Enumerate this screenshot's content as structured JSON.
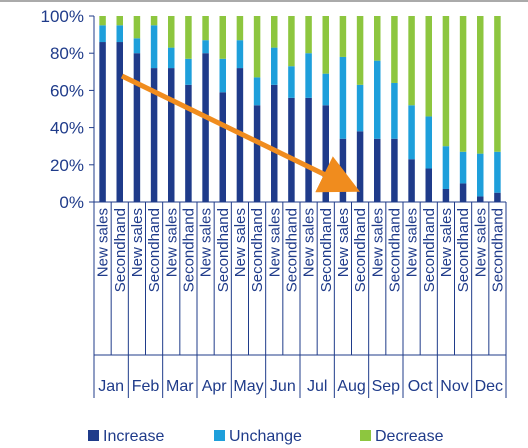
{
  "chart_data": {
    "type": "bar",
    "stacked": true,
    "normalized": true,
    "months": [
      "Jan",
      "Feb",
      "Mar",
      "Apr",
      "May",
      "Jun",
      "Jul",
      "Aug",
      "Sep",
      "Oct",
      "Nov",
      "Dec"
    ],
    "sub_categories": [
      "New sales",
      "Secondhand"
    ],
    "categories": [
      "Jan New sales",
      "Jan Secondhand",
      "Feb New sales",
      "Feb Secondhand",
      "Mar New sales",
      "Mar Secondhand",
      "Apr New sales",
      "Apr Secondhand",
      "May New sales",
      "May Secondhand",
      "Jun New sales",
      "Jun Secondhand",
      "Jul New sales",
      "Jul Secondhand",
      "Aug New sales",
      "Aug Secondhand",
      "Sep New sales",
      "Sep Secondhand",
      "Oct New sales",
      "Oct Secondhand",
      "Nov New sales",
      "Nov Secondhand",
      "Dec New sales",
      "Dec Secondhand"
    ],
    "series": [
      {
        "name": "Increase",
        "color": "#1f3b8a",
        "values": [
          86,
          86,
          80,
          72,
          72,
          63,
          80,
          59,
          72,
          52,
          63,
          56,
          56,
          52,
          34,
          38,
          34,
          34,
          23,
          18,
          7,
          10,
          3,
          5
        ]
      },
      {
        "name": "Unchange",
        "color": "#1e9fdb",
        "values": [
          9,
          9,
          8,
          23,
          11,
          14,
          7,
          18,
          15,
          15,
          20,
          17,
          24,
          17,
          44,
          25,
          42,
          30,
          29,
          28,
          23,
          17,
          23,
          22
        ]
      },
      {
        "name": "Decrease",
        "color": "#8dc63f",
        "values": [
          5,
          5,
          12,
          5,
          17,
          23,
          13,
          23,
          13,
          33,
          17,
          27,
          20,
          31,
          22,
          37,
          24,
          36,
          48,
          54,
          70,
          73,
          74,
          73
        ]
      }
    ],
    "ylim": [
      0,
      100
    ],
    "yticks": [
      "0%",
      "20%",
      "40%",
      "60%",
      "80%",
      "100%"
    ],
    "legend_position": "bottom",
    "annotation": "orange-arrow-downward-trend"
  }
}
